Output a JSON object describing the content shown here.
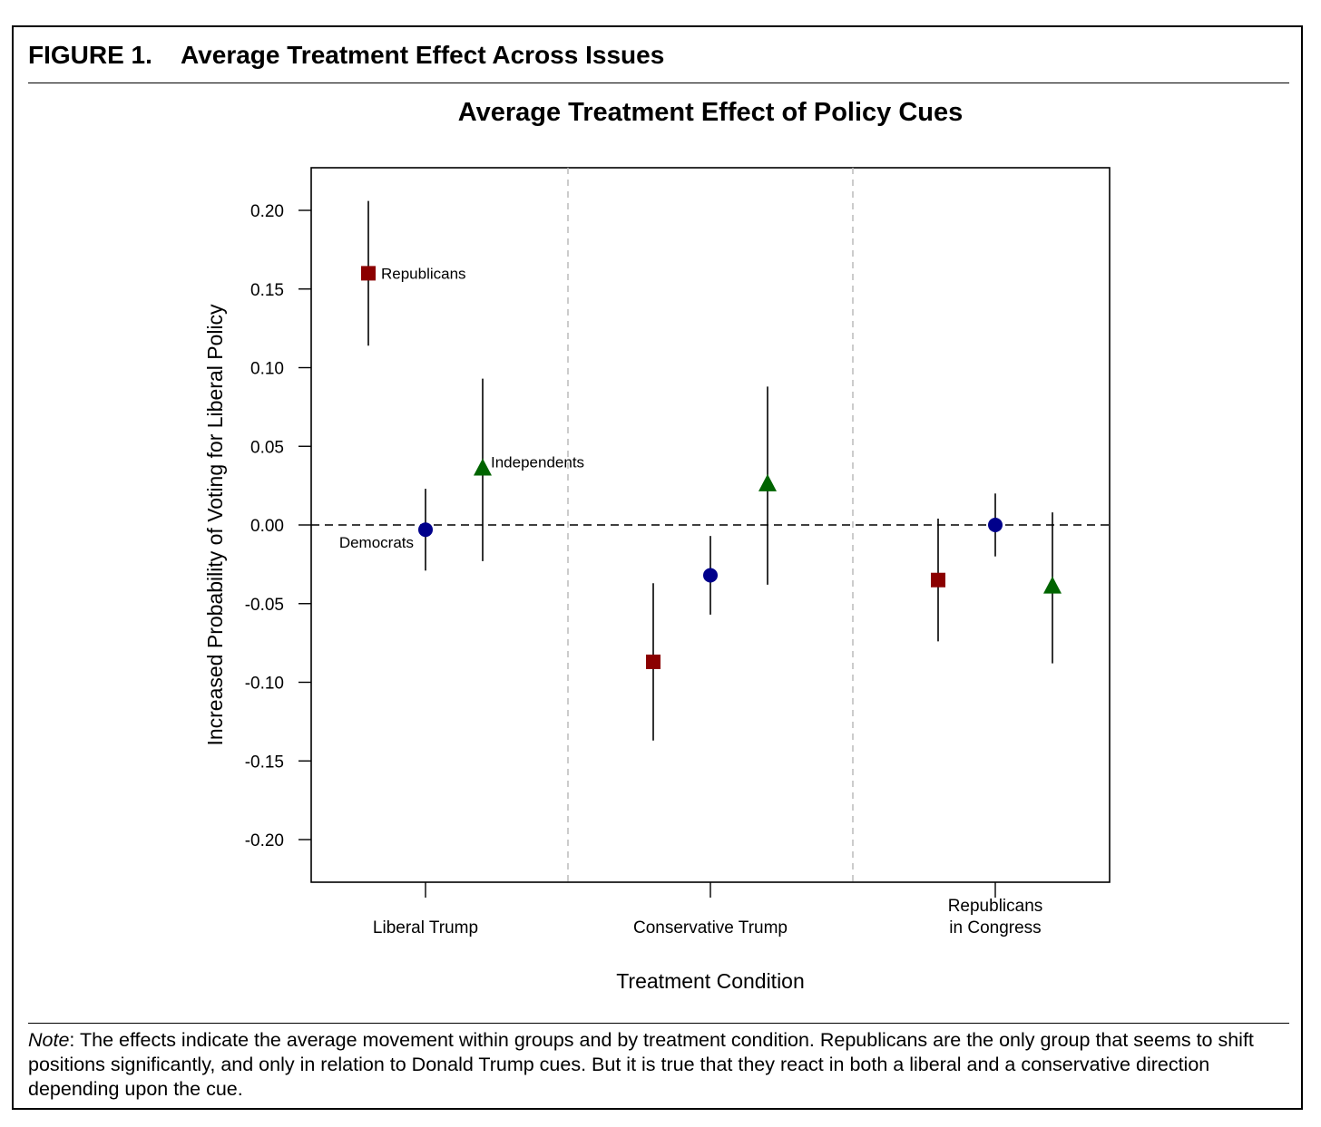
{
  "figure": {
    "number": "FIGURE 1.",
    "title": "Average Treatment Effect Across Issues"
  },
  "note": {
    "label": "Note",
    "text": ": The effects indicate the average movement within groups and by treatment condition. Republicans are the only group that seems to shift positions significantly, and only in relation to Donald Trump cues. But it is true that they react in both a liberal and a conservative direction depending upon the cue."
  },
  "chart_data": {
    "type": "scatter",
    "title": "Average Treatment Effect of Policy Cues",
    "xlabel": "Treatment Condition",
    "ylabel": "Increased Probability of Voting for Liberal Policy",
    "ylim": [
      -0.22,
      0.233
    ],
    "yticks": [
      0.2,
      0.15,
      0.1,
      0.05,
      0.0,
      -0.05,
      -0.1,
      -0.15,
      -0.2
    ],
    "ytick_labels": [
      "0.20",
      "0.15",
      "0.10",
      "0.05",
      "0.00",
      "-0.05",
      "-0.10",
      "-0.15",
      "-0.20"
    ],
    "categories": [
      [
        "Liberal Trump"
      ],
      [
        "Conservative Trump"
      ],
      [
        "Republicans",
        "in Congress"
      ]
    ],
    "reference_line": 0.0,
    "grid": false,
    "series": [
      {
        "name": "Republicans",
        "marker": "square",
        "color": "#8b0000",
        "values": [
          0.16,
          -0.087,
          -0.035
        ],
        "ci_low": [
          0.114,
          -0.137,
          -0.074
        ],
        "ci_high": [
          0.206,
          -0.037,
          0.004
        ]
      },
      {
        "name": "Democrats",
        "marker": "circle",
        "color": "#00008b",
        "values": [
          -0.003,
          -0.032,
          0.0
        ],
        "ci_low": [
          -0.029,
          -0.057,
          -0.02
        ],
        "ci_high": [
          0.023,
          -0.007,
          0.02
        ]
      },
      {
        "name": "Independents",
        "marker": "triangle",
        "color": "#006400",
        "values": [
          0.036,
          0.026,
          -0.039
        ],
        "ci_low": [
          -0.023,
          -0.038,
          -0.088
        ],
        "ci_high": [
          0.093,
          0.088,
          0.008
        ]
      }
    ],
    "annotations": [
      "Republicans",
      "Democrats",
      "Independents"
    ]
  }
}
